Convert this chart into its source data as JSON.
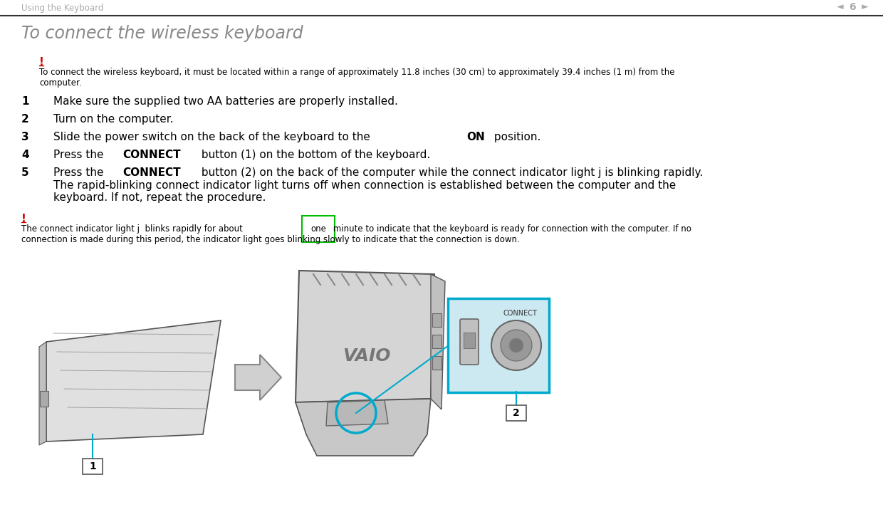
{
  "bg_color": "#ffffff",
  "header_text": "Using the Keyboard",
  "header_color": "#aaaaaa",
  "header_line_color": "#000000",
  "page_number": "6",
  "title": "To connect the wireless keyboard",
  "title_color": "#888888",
  "warning_color": "#cc0000",
  "body_text_color": "#000000",
  "one_box_color": "#00bb00",
  "cyan_color": "#00aacc",
  "step1": "Make sure the supplied two AA batteries are properly installed.",
  "step2": "Turn on the computer.",
  "step3_a": "Slide the power switch on the back of the keyboard to the ",
  "step3_b": "ON",
  "step3_c": " position.",
  "step4_a": "Press the ",
  "step4_b": "CONNECT",
  "step4_c": " button (1) on the bottom of the keyboard.",
  "step5_a": "Press the ",
  "step5_b": "CONNECT",
  "step5_c": " button (2) on the back of the computer while the connect indicator light ϳ is blinking rapidly.",
  "step5_d": "The rapid-blinking connect indicator light turns off when connection is established between the computer and the",
  "step5_e": "keyboard. If not, repeat the procedure.",
  "warn1": "To connect the wireless keyboard, it must be located within a range of approximately 11.8 inches (30 cm) to approximately 39.4 inches (1 m) from the",
  "warn1b": "computer.",
  "foot_a": "The connect indicator light ϳ  blinks rapidly for about ",
  "foot_b": "one",
  "foot_c": " minute to indicate that the keyboard is ready for connection with the computer. If no",
  "foot_d": "connection is made during this period, the indicator light goes blinking slowly to indicate that the connection is down."
}
